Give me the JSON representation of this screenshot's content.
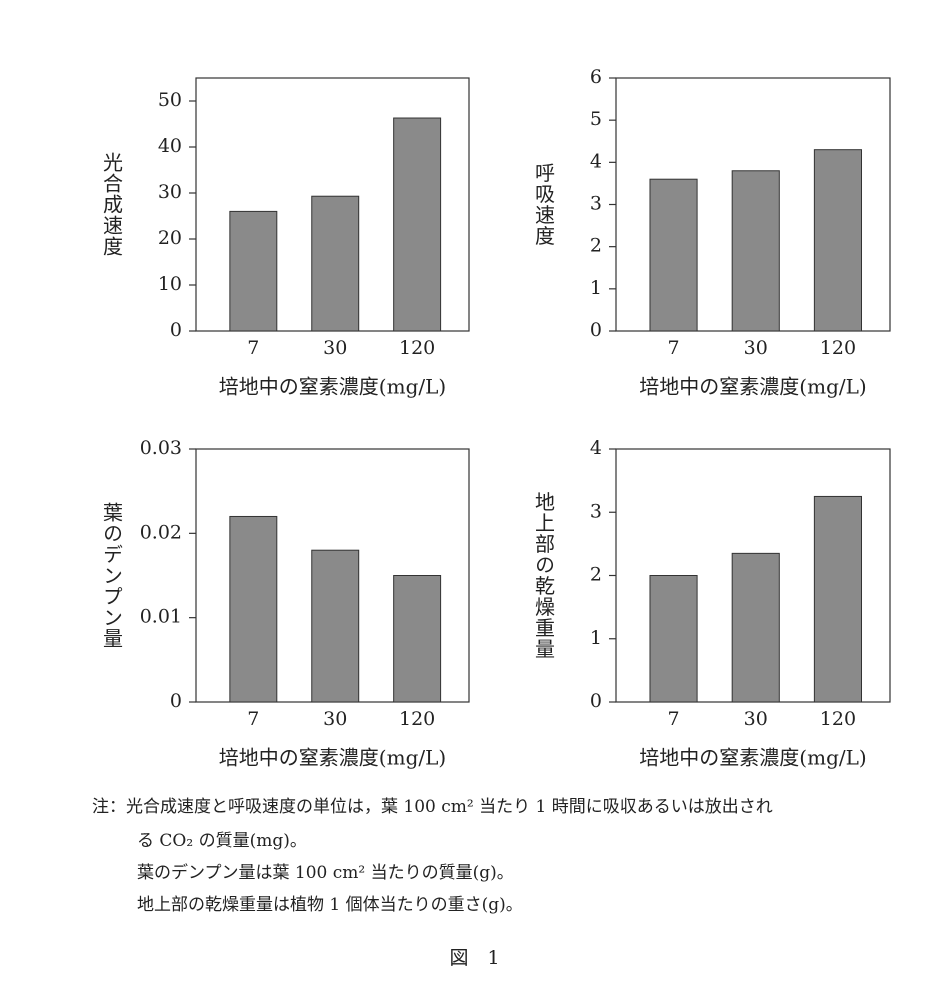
{
  "chart_data": [
    {
      "type": "bar",
      "ylabel": "光合成速度",
      "xlabel": "培地中の窒素濃度(mg/L)",
      "categories": [
        "7",
        "30",
        "120"
      ],
      "values": [
        26,
        29.3,
        46.3
      ],
      "color": "#8a8a8a",
      "ylim": [
        0,
        55
      ],
      "yticks": [
        0,
        10,
        20,
        30,
        40,
        50
      ]
    },
    {
      "type": "bar",
      "ylabel": "呼吸速度",
      "xlabel": "培地中の窒素濃度(mg/L)",
      "categories": [
        "7",
        "30",
        "120"
      ],
      "values": [
        3.6,
        3.8,
        4.3
      ],
      "color": "#8a8a8a",
      "ylim": [
        0,
        6
      ],
      "yticks": [
        0,
        1,
        2,
        3,
        4,
        5,
        6
      ]
    },
    {
      "type": "bar",
      "ylabel": "葉のデンプン量",
      "xlabel": "培地中の窒素濃度(mg/L)",
      "categories": [
        "7",
        "30",
        "120"
      ],
      "values": [
        0.022,
        0.018,
        0.015
      ],
      "color": "#8a8a8a",
      "ylim": [
        0,
        0.03
      ],
      "yticks": [
        0,
        0.01,
        0.02,
        0.03
      ]
    },
    {
      "type": "bar",
      "ylabel": "地上部の乾燥重量",
      "xlabel": "培地中の窒素濃度(mg/L)",
      "categories": [
        "7",
        "30",
        "120"
      ],
      "values": [
        2.0,
        2.35,
        3.25
      ],
      "color": "#8a8a8a",
      "ylim": [
        0,
        4
      ],
      "yticks": [
        0,
        1,
        2,
        3,
        4
      ]
    }
  ],
  "notes": [
    "注：光合成速度と呼吸速度の単位は，葉 100 cm² 当たり 1 時間に吸収あるいは放出され",
    "る CO₂ の質量(mg)。",
    "葉のデンプン量は葉 100 cm² 当たりの質量(g)。",
    "地上部の乾燥重量は植物 1 個体当たりの重さ(g)。"
  ],
  "caption": "図　1"
}
